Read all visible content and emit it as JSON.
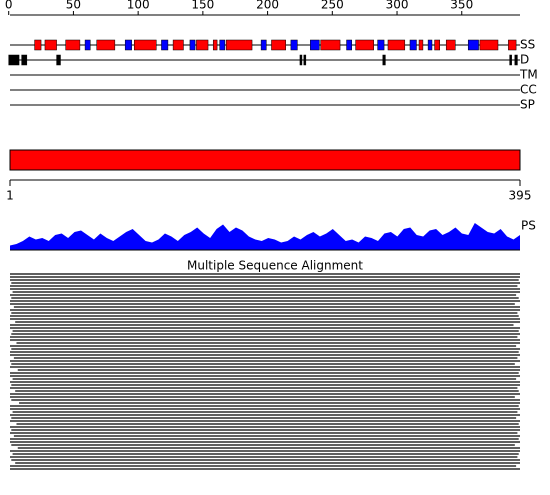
{
  "ruler": {
    "ticks": [
      0,
      50,
      100,
      150,
      200,
      250,
      300,
      350
    ]
  },
  "tracks": [
    {
      "label": "SS",
      "helix": [
        [
          20,
          25
        ],
        [
          28,
          37
        ],
        [
          44,
          55
        ],
        [
          68,
          82
        ],
        [
          97,
          114
        ],
        [
          127,
          135
        ],
        [
          145,
          154
        ],
        [
          158,
          161
        ],
        [
          168,
          188
        ],
        [
          203,
          214
        ],
        [
          241,
          256
        ],
        [
          268,
          282
        ],
        [
          293,
          306
        ],
        [
          317,
          320
        ],
        [
          329,
          333
        ],
        [
          338,
          345
        ],
        [
          364,
          378
        ],
        [
          386,
          392
        ]
      ],
      "strand": [
        [
          59,
          63
        ],
        [
          90,
          95
        ],
        [
          118,
          123
        ],
        [
          140,
          144
        ],
        [
          163,
          167
        ],
        [
          195,
          199
        ],
        [
          218,
          223
        ],
        [
          233,
          240
        ],
        [
          261,
          265
        ],
        [
          285,
          290
        ],
        [
          310,
          315
        ],
        [
          324,
          327
        ],
        [
          355,
          363
        ]
      ],
      "helix_color": "#ff0000",
      "strand_color": "#0000ff"
    },
    {
      "label": "D",
      "segments": [
        [
          0,
          8
        ],
        [
          10,
          14
        ],
        [
          37,
          40
        ],
        [
          225,
          226
        ],
        [
          228,
          229
        ],
        [
          289,
          291
        ],
        [
          387,
          388
        ],
        [
          391,
          393
        ]
      ],
      "color": "#000000"
    },
    {
      "label": "TM"
    },
    {
      "label": "CC"
    },
    {
      "label": "SP"
    }
  ],
  "domain_bar": {
    "start": 1,
    "end": 395,
    "color": "#ff0000"
  },
  "profile": {
    "label": "PS",
    "color": "#0000ff",
    "values": [
      0.15,
      0.2,
      0.3,
      0.45,
      0.35,
      0.4,
      0.3,
      0.5,
      0.55,
      0.4,
      0.6,
      0.65,
      0.5,
      0.35,
      0.55,
      0.4,
      0.3,
      0.45,
      0.6,
      0.7,
      0.5,
      0.3,
      0.25,
      0.35,
      0.55,
      0.45,
      0.3,
      0.5,
      0.6,
      0.75,
      0.55,
      0.4,
      0.7,
      0.85,
      0.6,
      0.75,
      0.65,
      0.45,
      0.35,
      0.3,
      0.4,
      0.35,
      0.25,
      0.3,
      0.45,
      0.35,
      0.5,
      0.6,
      0.45,
      0.55,
      0.7,
      0.5,
      0.3,
      0.35,
      0.25,
      0.45,
      0.4,
      0.3,
      0.55,
      0.6,
      0.45,
      0.7,
      0.75,
      0.5,
      0.45,
      0.65,
      0.7,
      0.5,
      0.6,
      0.75,
      0.55,
      0.5,
      0.9,
      0.75,
      0.6,
      0.55,
      0.7,
      0.45,
      0.35,
      0.5
    ]
  },
  "msa": {
    "title": "Multiple Sequence Alignment",
    "alignments": [
      [
        1,
        395
      ],
      [
        1,
        395
      ],
      [
        1,
        394
      ],
      [
        2,
        395
      ],
      [
        1,
        393
      ],
      [
        1,
        395
      ],
      [
        3,
        395
      ],
      [
        1,
        392
      ],
      [
        2,
        394
      ],
      [
        1,
        395
      ],
      [
        1,
        391
      ],
      [
        4,
        395
      ],
      [
        1,
        395
      ],
      [
        2,
        393
      ],
      [
        1,
        394
      ],
      [
        1,
        395
      ],
      [
        5,
        395
      ],
      [
        1,
        390
      ],
      [
        1,
        395
      ],
      [
        3,
        394
      ],
      [
        2,
        395
      ],
      [
        1,
        393
      ],
      [
        1,
        395
      ],
      [
        6,
        395
      ],
      [
        1,
        392
      ],
      [
        2,
        395
      ],
      [
        1,
        394
      ],
      [
        1,
        395
      ],
      [
        4,
        393
      ],
      [
        1,
        395
      ],
      [
        2,
        391
      ],
      [
        1,
        395
      ],
      [
        7,
        395
      ],
      [
        1,
        394
      ],
      [
        1,
        395
      ],
      [
        3,
        392
      ],
      [
        1,
        395
      ],
      [
        2,
        395
      ],
      [
        1,
        393
      ],
      [
        5,
        394
      ],
      [
        1,
        395
      ],
      [
        1,
        391
      ],
      [
        2,
        395
      ],
      [
        8,
        395
      ],
      [
        1,
        394
      ],
      [
        1,
        395
      ],
      [
        3,
        393
      ],
      [
        1,
        395
      ],
      [
        2,
        392
      ],
      [
        1,
        395
      ],
      [
        6,
        394
      ],
      [
        1,
        395
      ],
      [
        2,
        395
      ],
      [
        1,
        393
      ],
      [
        4,
        395
      ],
      [
        1,
        394
      ],
      [
        1,
        395
      ],
      [
        2,
        391
      ],
      [
        7,
        395
      ],
      [
        1,
        395
      ],
      [
        3,
        394
      ],
      [
        1,
        393
      ],
      [
        2,
        395
      ],
      [
        5,
        395
      ],
      [
        1,
        392
      ],
      [
        1,
        395
      ]
    ]
  }
}
